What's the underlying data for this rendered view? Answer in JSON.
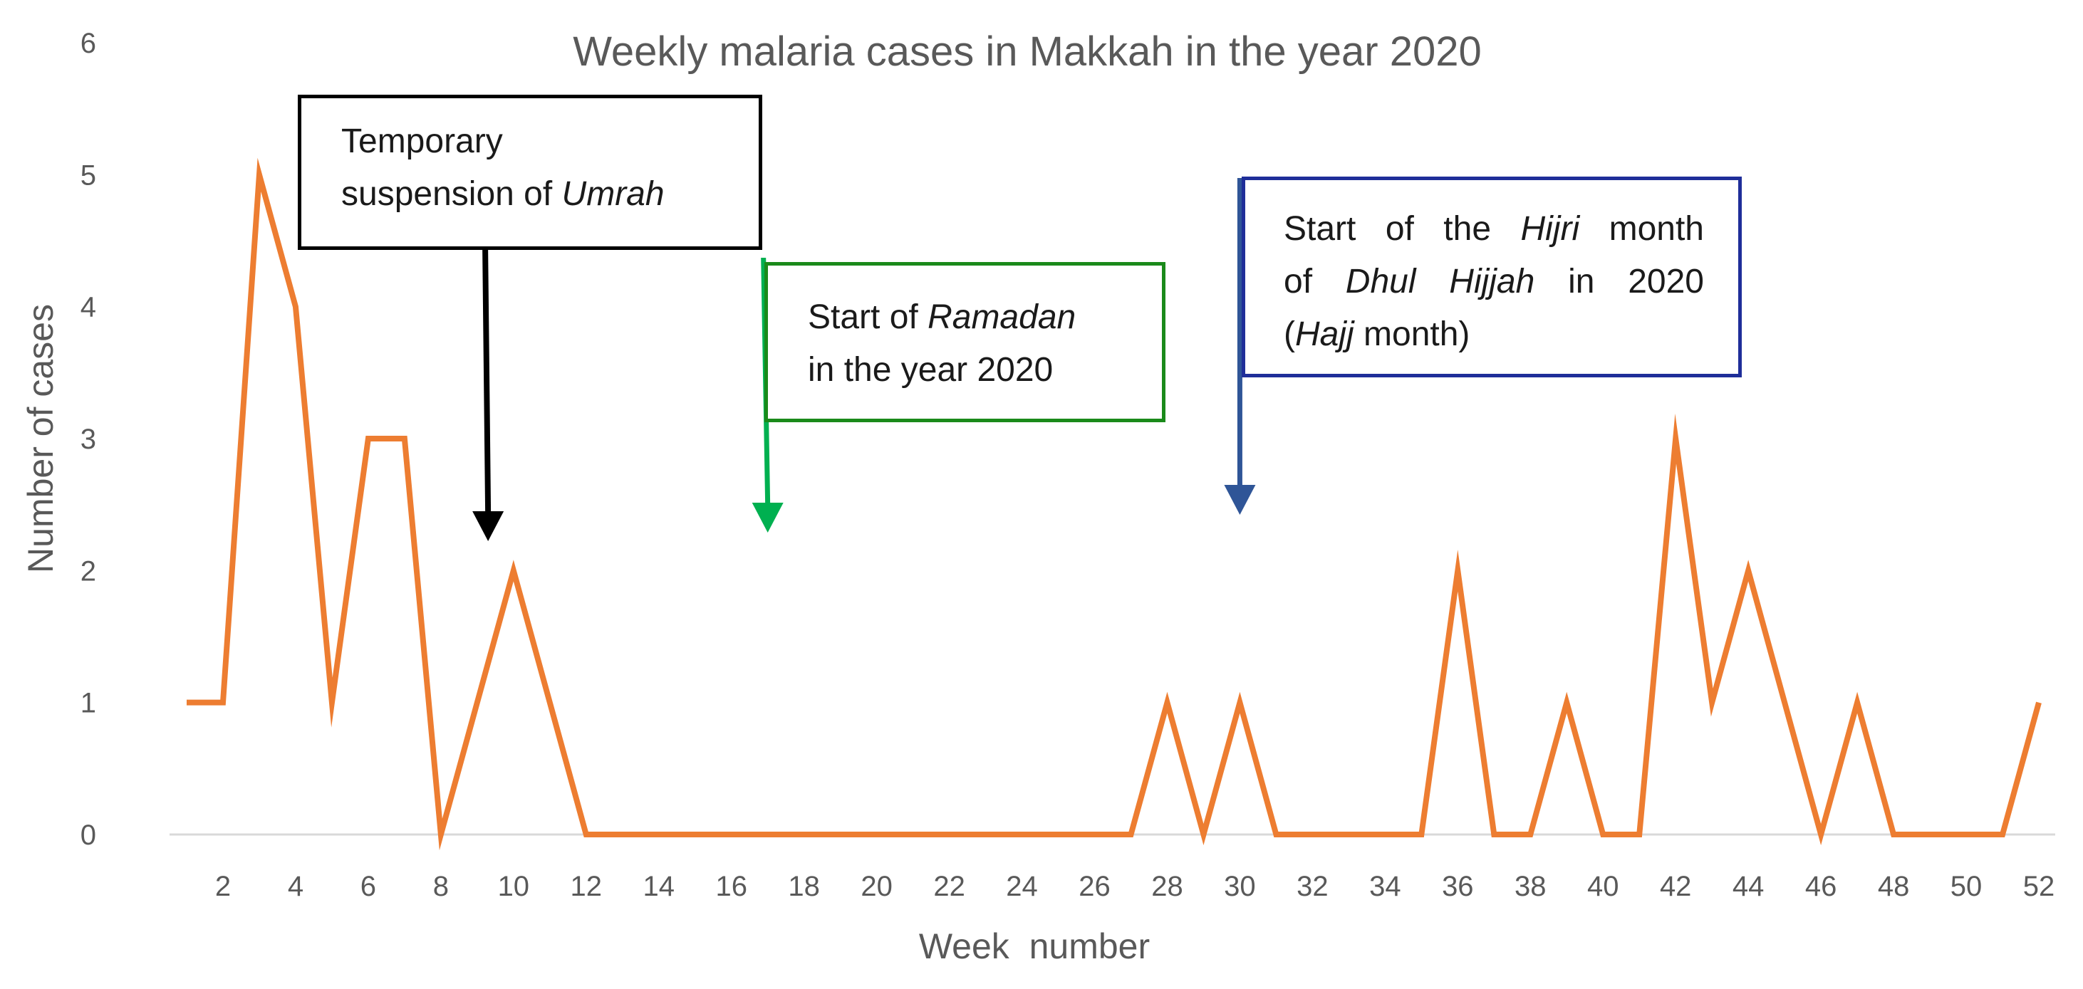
{
  "chart_data": {
    "type": "line",
    "title": "Weekly malaria cases in Makkah in the year 2020",
    "xlabel": "Week  number",
    "ylabel": "Number of cases",
    "x": [
      1,
      2,
      3,
      4,
      5,
      6,
      7,
      8,
      9,
      10,
      11,
      12,
      13,
      14,
      15,
      16,
      17,
      18,
      19,
      20,
      21,
      22,
      23,
      24,
      25,
      26,
      27,
      28,
      29,
      30,
      31,
      32,
      33,
      34,
      35,
      36,
      37,
      38,
      39,
      40,
      41,
      42,
      43,
      44,
      45,
      46,
      47,
      48,
      49,
      50,
      51,
      52
    ],
    "series": [
      {
        "values": [
          1,
          1,
          5,
          4,
          1,
          3,
          3,
          0,
          1,
          2,
          1,
          0,
          0,
          0,
          0,
          0,
          0,
          0,
          0,
          0,
          0,
          0,
          0,
          0,
          0,
          0,
          0,
          1,
          0,
          1,
          0,
          0,
          0,
          0,
          0,
          2,
          0,
          0,
          1,
          0,
          0,
          3,
          1,
          2,
          1,
          0,
          1,
          0,
          0,
          0,
          0,
          1
        ],
        "color": "#ED7D31"
      }
    ],
    "xticks": [
      "2",
      "4",
      "6",
      "8",
      "10",
      "12",
      "14",
      "16",
      "18",
      "20",
      "22",
      "24",
      "26",
      "28",
      "30",
      "32",
      "34",
      "36",
      "38",
      "40",
      "42",
      "44",
      "46",
      "48",
      "50",
      "52"
    ],
    "yticks": [
      "0",
      "1",
      "2",
      "3",
      "4",
      "5",
      "6"
    ],
    "xlim": [
      1,
      52
    ],
    "ylim": [
      0,
      6
    ],
    "grid": false,
    "axis_color": "#d9d9d9",
    "text_color": "#595959",
    "annotations": [
      {
        "id": "umrah",
        "lines": [
          [
            "Temporary"
          ],
          [
            "suspension of ",
            {
              "i": "Umrah"
            }
          ]
        ],
        "arrow_week": 9.3,
        "arrow_color": "#000000",
        "border_color": "#000000"
      },
      {
        "id": "ramadan",
        "lines": [
          [
            "Start of ",
            {
              "i": "Ramadan"
            }
          ],
          [
            "in the year 2020"
          ]
        ],
        "arrow_week": 17,
        "arrow_color": "#00b050",
        "border_color": "#1a8a1a"
      },
      {
        "id": "hijri",
        "lines": [
          [
            "Start of the ",
            {
              "i": "Hijri"
            },
            " month"
          ],
          [
            "of ",
            {
              "i": "Dhul Hijjah"
            },
            " in 2020"
          ],
          [
            "(",
            {
              "i": "Hajj"
            },
            " month)"
          ]
        ],
        "arrow_week": 30,
        "arrow_color": "#2f5597",
        "border_color": "#1f2e99"
      }
    ]
  }
}
